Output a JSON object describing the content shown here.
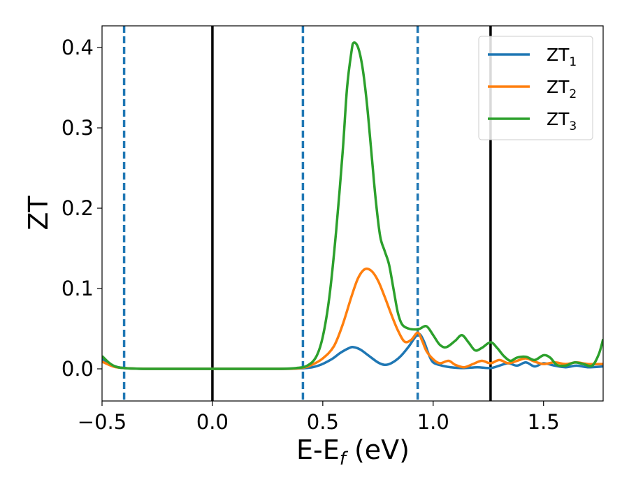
{
  "chart_data": {
    "type": "line",
    "xlabel_main": "E-E",
    "xlabel_sub": "f",
    "xlabel_unit": " (eV)",
    "ylabel": "ZT",
    "xlim": [
      -0.5,
      1.77
    ],
    "ylim": [
      -0.04,
      0.427
    ],
    "x_ticks": [
      {
        "value": -0.5,
        "label": "−0.5"
      },
      {
        "value": 0.0,
        "label": "0.0"
      },
      {
        "value": 0.5,
        "label": "0.5"
      },
      {
        "value": 1.0,
        "label": "1.0"
      },
      {
        "value": 1.5,
        "label": "1.5"
      }
    ],
    "y_ticks": [
      {
        "value": 0.0,
        "label": "0.0"
      },
      {
        "value": 0.1,
        "label": "0.1"
      },
      {
        "value": 0.2,
        "label": "0.2"
      },
      {
        "value": 0.3,
        "label": "0.3"
      },
      {
        "value": 0.4,
        "label": "0.4"
      }
    ],
    "grid": false,
    "legend_position": "top-right",
    "vertical_lines": [
      {
        "x": -0.4,
        "style": "dashed",
        "color": "#1f77b4"
      },
      {
        "x": 0.0,
        "style": "solid",
        "color": "#000000"
      },
      {
        "x": 0.41,
        "style": "dashed",
        "color": "#1f77b4"
      },
      {
        "x": 0.93,
        "style": "dashed",
        "color": "#1f77b4"
      },
      {
        "x": 1.26,
        "style": "solid",
        "color": "#000000"
      }
    ],
    "series": [
      {
        "name": "ZT",
        "sub": "1",
        "color": "#1f77b4",
        "points": [
          [
            -0.5,
            0.012
          ],
          [
            -0.45,
            0.004
          ],
          [
            -0.4,
            0.001
          ],
          [
            -0.3,
            0.0
          ],
          [
            0.0,
            0.0
          ],
          [
            0.3,
            0.0
          ],
          [
            0.42,
            0.001
          ],
          [
            0.48,
            0.004
          ],
          [
            0.54,
            0.012
          ],
          [
            0.58,
            0.02
          ],
          [
            0.62,
            0.026
          ],
          [
            0.64,
            0.027
          ],
          [
            0.67,
            0.024
          ],
          [
            0.71,
            0.016
          ],
          [
            0.75,
            0.008
          ],
          [
            0.78,
            0.005
          ],
          [
            0.81,
            0.007
          ],
          [
            0.85,
            0.015
          ],
          [
            0.89,
            0.028
          ],
          [
            0.92,
            0.04
          ],
          [
            0.94,
            0.043
          ],
          [
            0.96,
            0.033
          ],
          [
            0.98,
            0.018
          ],
          [
            1.0,
            0.008
          ],
          [
            1.04,
            0.004
          ],
          [
            1.08,
            0.002
          ],
          [
            1.14,
            0.001
          ],
          [
            1.2,
            0.002
          ],
          [
            1.26,
            0.001
          ],
          [
            1.3,
            0.004
          ],
          [
            1.34,
            0.007
          ],
          [
            1.38,
            0.004
          ],
          [
            1.42,
            0.008
          ],
          [
            1.46,
            0.003
          ],
          [
            1.5,
            0.007
          ],
          [
            1.55,
            0.004
          ],
          [
            1.6,
            0.002
          ],
          [
            1.65,
            0.004
          ],
          [
            1.7,
            0.002
          ],
          [
            1.77,
            0.003
          ]
        ]
      },
      {
        "name": "ZT",
        "sub": "2",
        "color": "#ff7f0e",
        "points": [
          [
            -0.5,
            0.009
          ],
          [
            -0.45,
            0.003
          ],
          [
            -0.4,
            0.001
          ],
          [
            -0.3,
            0.0
          ],
          [
            0.0,
            0.0
          ],
          [
            0.3,
            0.0
          ],
          [
            0.4,
            0.001
          ],
          [
            0.45,
            0.005
          ],
          [
            0.5,
            0.013
          ],
          [
            0.55,
            0.028
          ],
          [
            0.59,
            0.055
          ],
          [
            0.63,
            0.09
          ],
          [
            0.66,
            0.113
          ],
          [
            0.69,
            0.124
          ],
          [
            0.72,
            0.122
          ],
          [
            0.75,
            0.11
          ],
          [
            0.78,
            0.09
          ],
          [
            0.81,
            0.068
          ],
          [
            0.84,
            0.048
          ],
          [
            0.87,
            0.034
          ],
          [
            0.9,
            0.036
          ],
          [
            0.93,
            0.045
          ],
          [
            0.95,
            0.035
          ],
          [
            0.97,
            0.022
          ],
          [
            1.0,
            0.012
          ],
          [
            1.03,
            0.007
          ],
          [
            1.07,
            0.01
          ],
          [
            1.1,
            0.005
          ],
          [
            1.14,
            0.002
          ],
          [
            1.18,
            0.006
          ],
          [
            1.22,
            0.01
          ],
          [
            1.26,
            0.007
          ],
          [
            1.3,
            0.011
          ],
          [
            1.34,
            0.007
          ],
          [
            1.38,
            0.01
          ],
          [
            1.42,
            0.013
          ],
          [
            1.46,
            0.009
          ],
          [
            1.5,
            0.006
          ],
          [
            1.55,
            0.008
          ],
          [
            1.6,
            0.006
          ],
          [
            1.65,
            0.008
          ],
          [
            1.7,
            0.006
          ],
          [
            1.77,
            0.006
          ]
        ]
      },
      {
        "name": "ZT",
        "sub": "3",
        "color": "#2ca02c",
        "points": [
          [
            -0.5,
            0.016
          ],
          [
            -0.47,
            0.008
          ],
          [
            -0.44,
            0.003
          ],
          [
            -0.4,
            0.001
          ],
          [
            -0.3,
            0.0
          ],
          [
            0.0,
            0.0
          ],
          [
            0.3,
            0.0
          ],
          [
            0.38,
            0.001
          ],
          [
            0.43,
            0.004
          ],
          [
            0.47,
            0.015
          ],
          [
            0.5,
            0.04
          ],
          [
            0.53,
            0.09
          ],
          [
            0.56,
            0.17
          ],
          [
            0.59,
            0.27
          ],
          [
            0.61,
            0.35
          ],
          [
            0.63,
            0.395
          ],
          [
            0.64,
            0.406
          ],
          [
            0.66,
            0.4
          ],
          [
            0.68,
            0.375
          ],
          [
            0.7,
            0.33
          ],
          [
            0.72,
            0.27
          ],
          [
            0.74,
            0.21
          ],
          [
            0.76,
            0.165
          ],
          [
            0.78,
            0.147
          ],
          [
            0.8,
            0.13
          ],
          [
            0.82,
            0.1
          ],
          [
            0.84,
            0.07
          ],
          [
            0.86,
            0.055
          ],
          [
            0.89,
            0.05
          ],
          [
            0.92,
            0.049
          ],
          [
            0.94,
            0.05
          ],
          [
            0.97,
            0.053
          ],
          [
            1.0,
            0.042
          ],
          [
            1.03,
            0.03
          ],
          [
            1.06,
            0.027
          ],
          [
            1.1,
            0.035
          ],
          [
            1.13,
            0.042
          ],
          [
            1.16,
            0.033
          ],
          [
            1.19,
            0.023
          ],
          [
            1.22,
            0.026
          ],
          [
            1.26,
            0.033
          ],
          [
            1.29,
            0.026
          ],
          [
            1.32,
            0.016
          ],
          [
            1.35,
            0.01
          ],
          [
            1.38,
            0.014
          ],
          [
            1.42,
            0.015
          ],
          [
            1.46,
            0.011
          ],
          [
            1.5,
            0.017
          ],
          [
            1.53,
            0.014
          ],
          [
            1.56,
            0.005
          ],
          [
            1.6,
            0.004
          ],
          [
            1.64,
            0.008
          ],
          [
            1.68,
            0.006
          ],
          [
            1.72,
            0.004
          ],
          [
            1.75,
            0.018
          ],
          [
            1.77,
            0.037
          ]
        ]
      }
    ]
  }
}
